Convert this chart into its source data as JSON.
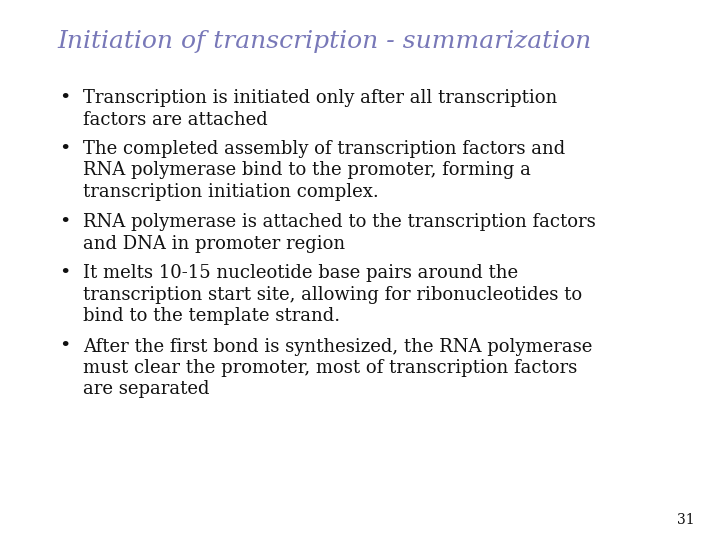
{
  "title": "Initiation of transcription - summarization",
  "title_color": "#7878b8",
  "title_fontsize": 18,
  "title_fontstyle": "italic",
  "title_fontweight": "normal",
  "background_color": "#ffffff",
  "bullet_color": "#111111",
  "bullet_fontsize": 13.0,
  "page_number": "31",
  "bullets": [
    "Transcription is initiated only after all transcription\nfactors are attached",
    "The completed assembly of transcription factors and\nRNA polymerase bind to the promoter, forming a\ntranscription initiation complex.",
    "RNA polymerase is attached to the transcription factors\nand DNA in promoter region",
    "It melts 10-15 nucleotide base pairs around the\ntranscription start site, allowing for ribonucleotides to\nbind to the template strand.",
    "After the first bond is synthesized, the RNA polymerase\nmust clear the promoter, most of transcription factors\nare separated"
  ]
}
